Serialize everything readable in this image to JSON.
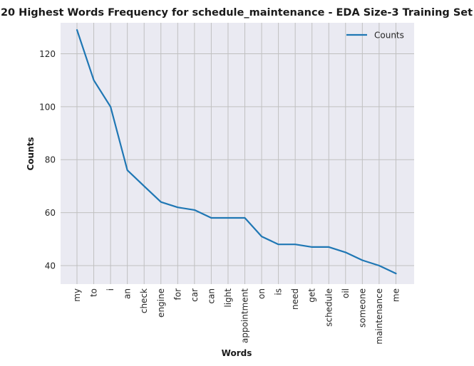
{
  "chart_data": {
    "type": "line",
    "title": "20 Highest Words Frequency for schedule_maintenance - EDA Size-3 Training Set",
    "xlabel": "Words",
    "ylabel": "Counts",
    "categories": [
      "my",
      "to",
      "i",
      "an",
      "check",
      "engine",
      "for",
      "car",
      "can",
      "light",
      "appointment",
      "on",
      "is",
      "need",
      "get",
      "schedule",
      "oil",
      "someone",
      "maintenance",
      "me"
    ],
    "series": [
      {
        "name": "Counts",
        "values": [
          129,
          110,
          100,
          76,
          70,
          64,
          62,
          61,
          58,
          58,
          58,
          51,
          48,
          48,
          47,
          47,
          45,
          42,
          40,
          37
        ],
        "color": "#1f77b4"
      }
    ],
    "ylim": [
      33,
      131.7
    ],
    "yticks": [
      40,
      60,
      80,
      100,
      120
    ],
    "grid": true,
    "legend_position": "top-right",
    "plot_background": "#eaeaf2",
    "grid_color": "#c0c0c0"
  }
}
